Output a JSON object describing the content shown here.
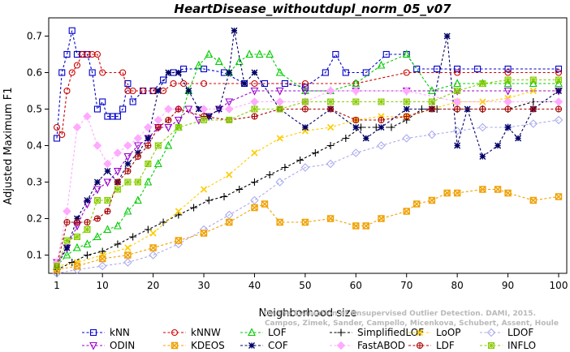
{
  "chart_data": {
    "type": "line",
    "title": "HeartDisease_withoutdupl_norm_05_v07",
    "xlabel": "Neighborhood size",
    "ylabel": "Adjusted Maximum F1",
    "xlim": [
      1,
      100
    ],
    "ylim": [
      0.05,
      0.75
    ],
    "xticks": [
      1,
      10,
      20,
      30,
      40,
      50,
      60,
      70,
      80,
      90,
      100
    ],
    "yticks": [
      0.1,
      0.2,
      0.3,
      0.4,
      0.5,
      0.6,
      0.7
    ],
    "grid": false,
    "legend_position": "bottom",
    "credit": [
      "Campos, Zimek, Sander, Campello, Micenkova, Schubert, Assent, Houle",
      "On the Evaluation of Unsupervised Outlier Detection. DAMI, 2015."
    ],
    "series": [
      {
        "name": "kNN",
        "color": "#0000cc",
        "marker": "square",
        "x": [
          1,
          2,
          3,
          4,
          5,
          6,
          7,
          8,
          9,
          10,
          11,
          12,
          13,
          14,
          15,
          16,
          18,
          20,
          22,
          24,
          26,
          30,
          34,
          38,
          42,
          46,
          50,
          54,
          56,
          58,
          62,
          66,
          70,
          72,
          76,
          80,
          84,
          90,
          100
        ],
        "y": [
          0.42,
          0.6,
          0.65,
          0.715,
          0.65,
          0.65,
          0.65,
          0.6,
          0.5,
          0.52,
          0.48,
          0.48,
          0.48,
          0.5,
          0.57,
          0.52,
          0.55,
          0.55,
          0.58,
          0.6,
          0.61,
          0.61,
          0.6,
          0.57,
          0.57,
          0.57,
          0.56,
          0.6,
          0.65,
          0.6,
          0.6,
          0.65,
          0.65,
          0.61,
          0.61,
          0.61,
          0.61,
          0.61,
          0.61
        ]
      },
      {
        "name": "kNNW",
        "color": "#cc0000",
        "marker": "circle",
        "x": [
          1,
          2,
          3,
          4,
          5,
          6,
          7,
          8,
          9,
          10,
          14,
          15,
          16,
          18,
          20,
          22,
          24,
          26,
          30,
          40,
          50,
          60,
          70,
          80,
          90,
          100
        ],
        "y": [
          0.45,
          0.43,
          0.55,
          0.6,
          0.62,
          0.65,
          0.65,
          0.65,
          0.65,
          0.6,
          0.6,
          0.55,
          0.55,
          0.55,
          0.55,
          0.55,
          0.57,
          0.57,
          0.57,
          0.57,
          0.57,
          0.57,
          0.6,
          0.6,
          0.6,
          0.6
        ]
      },
      {
        "name": "LOF",
        "color": "#00cc00",
        "marker": "triangle-up",
        "x": [
          1,
          3,
          5,
          7,
          9,
          11,
          13,
          15,
          17,
          19,
          21,
          23,
          25,
          27,
          29,
          31,
          33,
          35,
          37,
          39,
          41,
          43,
          45,
          50,
          55,
          60,
          65,
          70,
          75,
          80,
          85,
          90,
          95,
          100
        ],
        "y": [
          0.07,
          0.1,
          0.12,
          0.13,
          0.15,
          0.17,
          0.18,
          0.22,
          0.25,
          0.3,
          0.35,
          0.4,
          0.45,
          0.55,
          0.62,
          0.65,
          0.63,
          0.6,
          0.63,
          0.65,
          0.65,
          0.65,
          0.6,
          0.55,
          0.55,
          0.57,
          0.62,
          0.65,
          0.55,
          0.57,
          0.57,
          0.57,
          0.57,
          0.57
        ]
      },
      {
        "name": "SimplifiedLOF",
        "color": "#000000",
        "marker": "plus",
        "x": [
          1,
          4,
          7,
          10,
          13,
          16,
          19,
          22,
          25,
          28,
          31,
          34,
          37,
          40,
          43,
          46,
          49,
          52,
          55,
          58,
          61,
          64,
          67,
          70,
          73,
          76,
          80,
          85,
          90,
          95,
          100
        ],
        "y": [
          0.06,
          0.08,
          0.1,
          0.11,
          0.13,
          0.15,
          0.17,
          0.19,
          0.21,
          0.23,
          0.25,
          0.26,
          0.28,
          0.3,
          0.32,
          0.34,
          0.36,
          0.38,
          0.4,
          0.42,
          0.45,
          0.45,
          0.45,
          0.47,
          0.5,
          0.5,
          0.5,
          0.5,
          0.5,
          0.52,
          0.52
        ]
      },
      {
        "name": "LoOP",
        "color": "#ffcc00",
        "marker": "x",
        "x": [
          1,
          5,
          10,
          15,
          20,
          25,
          30,
          35,
          40,
          45,
          50,
          55,
          60,
          65,
          70,
          75,
          80,
          85,
          90,
          95,
          100
        ],
        "y": [
          0.07,
          0.08,
          0.1,
          0.12,
          0.16,
          0.22,
          0.28,
          0.32,
          0.38,
          0.42,
          0.44,
          0.45,
          0.47,
          0.48,
          0.48,
          0.5,
          0.52,
          0.52,
          0.53,
          0.55,
          0.55
        ]
      },
      {
        "name": "LDOF",
        "color": "#aaaaee",
        "marker": "diamond",
        "x": [
          1,
          5,
          10,
          15,
          20,
          25,
          30,
          35,
          40,
          45,
          50,
          55,
          60,
          65,
          70,
          75,
          80,
          85,
          90,
          95,
          100
        ],
        "y": [
          0.05,
          0.06,
          0.07,
          0.08,
          0.1,
          0.13,
          0.17,
          0.21,
          0.25,
          0.3,
          0.34,
          0.35,
          0.38,
          0.4,
          0.42,
          0.43,
          0.44,
          0.45,
          0.45,
          0.46,
          0.47
        ]
      },
      {
        "name": "ODIN",
        "color": "#9900cc",
        "marker": "triangle-down",
        "x": [
          1,
          3,
          5,
          7,
          9,
          11,
          13,
          15,
          17,
          19,
          21,
          23,
          25,
          27,
          29,
          31,
          33,
          35,
          40,
          45,
          50,
          60,
          70,
          80,
          90,
          100
        ],
        "y": [
          0.08,
          0.12,
          0.18,
          0.24,
          0.28,
          0.3,
          0.33,
          0.37,
          0.4,
          0.42,
          0.45,
          0.45,
          0.47,
          0.5,
          0.47,
          0.48,
          0.5,
          0.52,
          0.55,
          0.55,
          0.55,
          0.55,
          0.55,
          0.55,
          0.55,
          0.55
        ]
      },
      {
        "name": "KDEOS",
        "color": "#f0a000",
        "marker": "square-x",
        "x": [
          1,
          5,
          10,
          15,
          20,
          25,
          30,
          35,
          40,
          42,
          45,
          50,
          55,
          60,
          62,
          65,
          70,
          72,
          75,
          78,
          80,
          85,
          88,
          90,
          95,
          100
        ],
        "y": [
          0.06,
          0.07,
          0.09,
          0.1,
          0.12,
          0.14,
          0.16,
          0.19,
          0.23,
          0.24,
          0.19,
          0.19,
          0.2,
          0.18,
          0.18,
          0.2,
          0.22,
          0.24,
          0.25,
          0.27,
          0.27,
          0.28,
          0.28,
          0.27,
          0.25,
          0.26
        ]
      },
      {
        "name": "COF",
        "color": "#000066",
        "marker": "asterisk",
        "x": [
          1,
          3,
          5,
          7,
          9,
          11,
          13,
          15,
          17,
          19,
          21,
          23,
          25,
          27,
          29,
          31,
          33,
          35,
          36,
          38,
          40,
          45,
          50,
          55,
          60,
          62,
          65,
          70,
          75,
          78,
          80,
          82,
          85,
          88,
          90,
          92,
          95,
          100
        ],
        "y": [
          0.07,
          0.12,
          0.2,
          0.25,
          0.3,
          0.33,
          0.3,
          0.35,
          0.38,
          0.42,
          0.55,
          0.6,
          0.6,
          0.55,
          0.5,
          0.48,
          0.5,
          0.6,
          0.715,
          0.57,
          0.6,
          0.5,
          0.45,
          0.5,
          0.45,
          0.42,
          0.45,
          0.5,
          0.5,
          0.7,
          0.4,
          0.5,
          0.37,
          0.4,
          0.45,
          0.42,
          0.5,
          0.55
        ]
      },
      {
        "name": "FastABOD",
        "color": "#ffaaff",
        "marker": "diamond-filled",
        "x": [
          1,
          3,
          5,
          7,
          9,
          11,
          13,
          15,
          17,
          19,
          21,
          23,
          25,
          30,
          35,
          40,
          45,
          50,
          55,
          60,
          70,
          80,
          90,
          100
        ],
        "y": [
          0.08,
          0.22,
          0.45,
          0.48,
          0.4,
          0.35,
          0.38,
          0.4,
          0.42,
          0.45,
          0.47,
          0.5,
          0.5,
          0.5,
          0.5,
          0.52,
          0.52,
          0.52,
          0.55,
          0.55,
          0.55,
          0.52,
          0.52,
          0.52
        ]
      },
      {
        "name": "LDF",
        "color": "#aa0000",
        "marker": "circle-plus",
        "x": [
          1,
          3,
          5,
          7,
          9,
          11,
          13,
          15,
          17,
          19,
          21,
          23,
          25,
          30,
          35,
          40,
          45,
          50,
          55,
          60,
          65,
          70,
          75,
          80,
          85,
          90,
          95,
          100
        ],
        "y": [
          0.07,
          0.19,
          0.19,
          0.19,
          0.2,
          0.22,
          0.3,
          0.33,
          0.37,
          0.4,
          0.45,
          0.47,
          0.5,
          0.48,
          0.47,
          0.48,
          0.5,
          0.5,
          0.5,
          0.47,
          0.47,
          0.48,
          0.5,
          0.5,
          0.5,
          0.5,
          0.5,
          0.5
        ]
      },
      {
        "name": "INFLO",
        "color": "#88cc00",
        "marker": "star-square",
        "x": [
          1,
          3,
          5,
          7,
          9,
          11,
          13,
          15,
          17,
          19,
          21,
          25,
          30,
          35,
          40,
          45,
          50,
          55,
          60,
          65,
          70,
          75,
          80,
          85,
          90,
          95,
          100
        ],
        "y": [
          0.07,
          0.14,
          0.15,
          0.17,
          0.25,
          0.25,
          0.28,
          0.3,
          0.3,
          0.35,
          0.4,
          0.45,
          0.47,
          0.47,
          0.5,
          0.5,
          0.52,
          0.52,
          0.52,
          0.52,
          0.52,
          0.52,
          0.55,
          0.57,
          0.58,
          0.58,
          0.58
        ]
      }
    ]
  }
}
